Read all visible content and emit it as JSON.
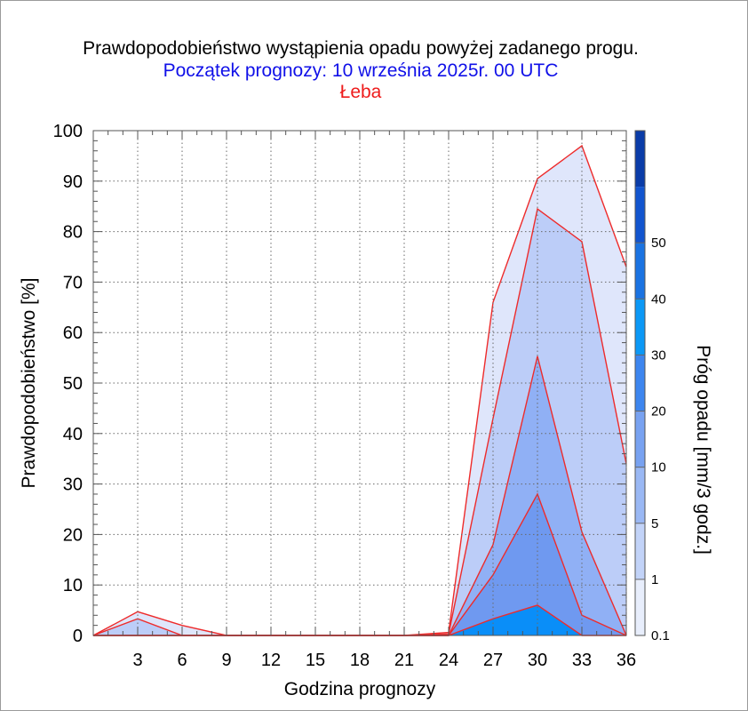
{
  "title": "Prawdopodobieństwo wystąpienia opadu powyżej zadanego progu.",
  "subtitle": "Początek prognozy: 10 września 2025r. 00 UTC",
  "location": "Łeba",
  "colors": {
    "title": "#000000",
    "subtitle": "#1010e8",
    "location": "#ee1c1c",
    "outline": "#ee2b2b"
  },
  "chart_data": {
    "type": "area",
    "xlabel": "Godzina prognozy",
    "ylabel": "Prawdopodobieństwo [%]",
    "xlim": [
      0,
      36
    ],
    "ylim": [
      0,
      100
    ],
    "x_ticks": [
      3,
      6,
      9,
      12,
      15,
      18,
      21,
      24,
      27,
      30,
      33,
      36
    ],
    "y_ticks": [
      0,
      10,
      20,
      30,
      40,
      50,
      60,
      70,
      80,
      90,
      100
    ],
    "x": [
      0,
      3,
      6,
      9,
      12,
      15,
      18,
      21,
      24,
      27,
      30,
      33,
      36
    ],
    "series": [
      {
        "name": "0.1",
        "color": "#dfe6fb",
        "values": [
          0,
          4.7,
          2.0,
          0,
          0,
          0,
          0,
          0,
          0.6,
          66,
          90.5,
          97,
          73
        ]
      },
      {
        "name": "1",
        "color": "#bccdf8",
        "values": [
          0,
          3.3,
          0,
          0,
          0,
          0,
          0,
          0,
          0.3,
          43,
          84.5,
          78,
          34
        ]
      },
      {
        "name": "5",
        "color": "#90b0f5",
        "values": [
          0,
          0,
          0,
          0,
          0,
          0,
          0,
          0,
          0,
          18,
          55.3,
          20.5,
          0
        ]
      },
      {
        "name": "10",
        "color": "#6f99f0",
        "values": [
          0,
          0,
          0,
          0,
          0,
          0,
          0,
          0,
          0,
          12,
          28,
          4,
          0
        ]
      },
      {
        "name": "20",
        "color": "#0a8ef8",
        "values": [
          0,
          0,
          0,
          0,
          0,
          0,
          0,
          0,
          0,
          3.3,
          6,
          0,
          0
        ]
      }
    ],
    "colorbar": {
      "title": "Próg opadu [mm/3 godz.]",
      "labels": [
        "0.1",
        "1",
        "5",
        "10",
        "20",
        "30",
        "40",
        "50"
      ],
      "colors": [
        "#e8eefc",
        "#c2d3f8",
        "#9ab8f4",
        "#78a2f1",
        "#3d86ef",
        "#0b98f6",
        "#1a73e2",
        "#1255cf",
        "#0a3ca8"
      ]
    }
  }
}
